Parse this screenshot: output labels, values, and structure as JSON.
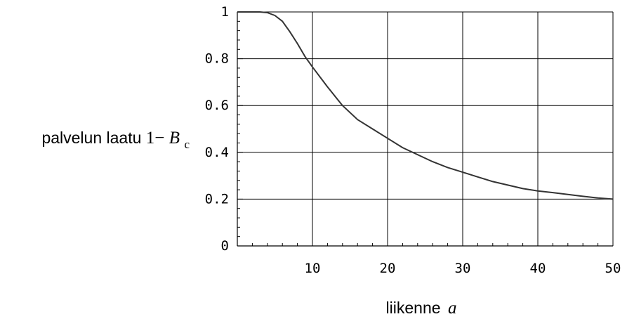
{
  "chart_data": {
    "type": "line",
    "title": "",
    "xlabel": {
      "text": "liikenne",
      "var": "a"
    },
    "ylabel": {
      "text": "palvelun laatu",
      "expr": "1−",
      "var": "B",
      "sub": "c"
    },
    "xlim": [
      0,
      50
    ],
    "ylim": [
      0,
      1
    ],
    "xticks": [
      10,
      20,
      30,
      40,
      50
    ],
    "yticks": [
      0,
      0.2,
      0.4,
      0.6,
      0.8,
      1
    ],
    "xtick_labels": [
      "10",
      "20",
      "30",
      "40",
      "50"
    ],
    "ytick_labels": [
      "0",
      "0.2",
      "0.4",
      "0.6",
      "0.8",
      "1"
    ],
    "grid": true,
    "series": [
      {
        "x": [
          0,
          1,
          2,
          3,
          4,
          5,
          6,
          7,
          8,
          9,
          10,
          12,
          14,
          16,
          18,
          20,
          22,
          24,
          26,
          28,
          30,
          32,
          34,
          36,
          38,
          40,
          42,
          44,
          46,
          48,
          50
        ],
        "y": [
          1.0,
          1.0,
          1.0,
          1.0,
          0.997,
          0.985,
          0.96,
          0.915,
          0.865,
          0.81,
          0.765,
          0.68,
          0.6,
          0.54,
          0.5,
          0.46,
          0.42,
          0.39,
          0.36,
          0.335,
          0.315,
          0.295,
          0.275,
          0.26,
          0.245,
          0.235,
          0.228,
          0.22,
          0.212,
          0.205,
          0.2
        ]
      }
    ]
  }
}
